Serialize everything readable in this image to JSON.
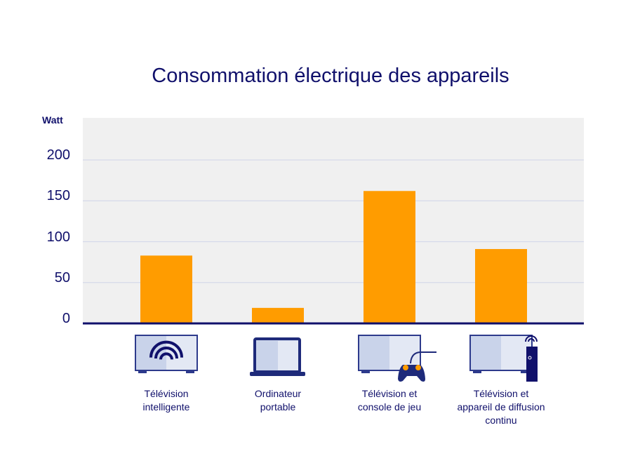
{
  "chart_data": {
    "type": "bar",
    "title": "Consommation électrique des appareils",
    "ylabel": "Watt",
    "xlabel": "",
    "ylim": [
      0,
      250
    ],
    "yticks": [
      0,
      50,
      100,
      150,
      200
    ],
    "yticklabels": [
      "0",
      "50",
      "100",
      "150",
      "200"
    ],
    "grid": true,
    "categories": [
      "Télévision intelligente",
      "Ordinateur portable",
      "Télévision et console de jeu",
      "Télévision et appareil de diffusion continu"
    ],
    "category_lines": [
      [
        "Télévision",
        "intelligente"
      ],
      [
        "Ordinateur",
        "portable"
      ],
      [
        "Télévision et",
        "console de jeu"
      ],
      [
        "Télévision et",
        "appareil de diffusion",
        "continu"
      ]
    ],
    "category_icons": [
      "smart-tv-icon",
      "laptop-icon",
      "tv-game-console-icon",
      "tv-streaming-device-icon"
    ],
    "values": [
      83,
      19,
      162,
      91
    ],
    "colors": {
      "bar": "#ff9c00",
      "plot_bg": "#f0f0f0",
      "axis": "#10106b",
      "grid": "#d5d9ea",
      "text": "#10106b"
    }
  }
}
